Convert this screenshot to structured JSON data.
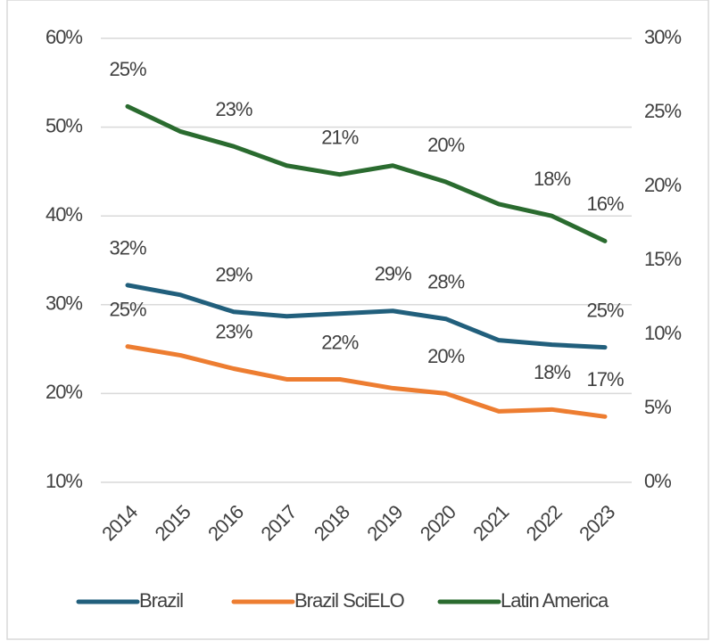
{
  "chart_data": {
    "type": "line",
    "categories": [
      "2014",
      "2015",
      "2016",
      "2017",
      "2018",
      "2019",
      "2020",
      "2021",
      "2022",
      "2023"
    ],
    "series": [
      {
        "name": "Brazil",
        "color": "#215f7c",
        "values": [
          32.2,
          31.1,
          29.2,
          28.7,
          29.0,
          29.3,
          28.4,
          26.0,
          25.5,
          25.2
        ],
        "value_labels": [
          "32%",
          null,
          "29%",
          null,
          null,
          "29%",
          "28%",
          null,
          null,
          "25%"
        ]
      },
      {
        "name": "Brazil SciELO",
        "color": "#ed7d31",
        "values": [
          25.3,
          24.3,
          22.8,
          21.6,
          21.6,
          20.6,
          20.0,
          18.0,
          18.2,
          17.4
        ],
        "value_labels": [
          "25%",
          null,
          "23%",
          null,
          "22%",
          null,
          "20%",
          null,
          "18%",
          "17%"
        ]
      },
      {
        "name": "Latin America",
        "color": "#2a6b2f",
        "axis": "y2",
        "values": [
          25.4,
          23.7,
          22.7,
          21.4,
          20.8,
          21.4,
          20.3,
          18.8,
          18.0,
          16.3
        ],
        "value_labels": [
          "25%",
          null,
          "23%",
          null,
          "21%",
          null,
          "20%",
          null,
          "18%",
          "16%"
        ]
      }
    ],
    "ylim": [
      10,
      60
    ],
    "yticks": [
      {
        "value": 10,
        "label": "10%"
      },
      {
        "value": 20,
        "label": "20%"
      },
      {
        "value": 30,
        "label": "30%"
      },
      {
        "value": 40,
        "label": "40%"
      },
      {
        "value": 50,
        "label": "50%"
      },
      {
        "value": 60,
        "label": "60%"
      }
    ],
    "y2lim": [
      0,
      30
    ],
    "y2ticks": [
      {
        "value": 0,
        "label": "0%"
      },
      {
        "value": 5,
        "label": "5%"
      },
      {
        "value": 10,
        "label": "10%"
      },
      {
        "value": 15,
        "label": "15%"
      },
      {
        "value": 20,
        "label": "20%"
      },
      {
        "value": 25,
        "label": "25%"
      },
      {
        "value": 30,
        "label": "30%"
      }
    ],
    "grid": true,
    "legend": "bottom"
  }
}
